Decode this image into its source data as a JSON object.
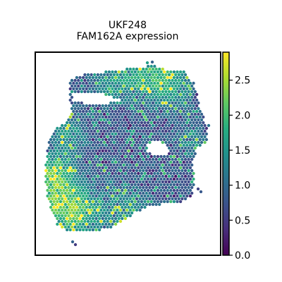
{
  "chart_data": {
    "type": "heatmap",
    "subtype": "spatial-transcriptomics-spot-plot",
    "title": "UKF248",
    "subtitle": "FAM162A expression",
    "xlabel": "",
    "ylabel": "",
    "colormap": "viridis",
    "color_range": [
      0.0,
      2.9
    ],
    "colorbar_ticks": [
      0.0,
      0.5,
      1.0,
      1.5,
      2.0,
      2.5
    ],
    "colorbar_tick_labels": [
      "0.0",
      "0.5",
      "1.0",
      "1.5",
      "2.0",
      "2.5"
    ],
    "grid": false,
    "axes_ticks_visible": false,
    "spot_value_distribution": {
      "mode": 0.75,
      "typical_range": [
        0.2,
        1.6
      ],
      "max_observed": 2.9,
      "high_expression_areas": [
        "lower-left edge",
        "upper-right edge",
        "top-center band"
      ]
    }
  }
}
